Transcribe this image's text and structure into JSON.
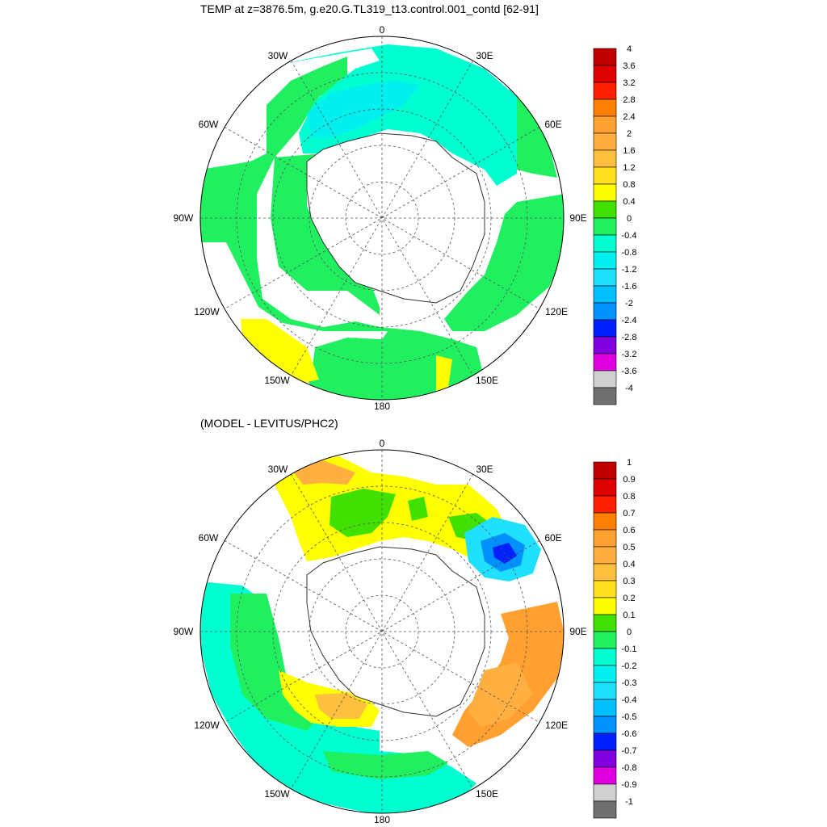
{
  "panels": [
    {
      "title": "TEMP at z=3876.5m, g.e20.G.TL319_t13.control.001_contd [62-91]",
      "lon_labels": [
        "0",
        "30E",
        "60E",
        "90E",
        "120E",
        "150E",
        "180",
        "150W",
        "120W",
        "90W",
        "60W",
        "30W"
      ],
      "colorbar": {
        "levels": [
          "4",
          "3.6",
          "3.2",
          "2.8",
          "2.4",
          "2",
          "1.6",
          "1.2",
          "0.8",
          "0.4",
          "0",
          "-0.4",
          "-0.8",
          "-1.2",
          "-1.6",
          "-2",
          "-2.4",
          "-2.8",
          "-3.2",
          "-3.6",
          "-4"
        ],
        "colors": [
          "#c00000",
          "#e00000",
          "#ff2000",
          "#ff8000",
          "#ffa030",
          "#ffb040",
          "#ffc040",
          "#ffe020",
          "#ffff00",
          "#40e000",
          "#20f060",
          "#00ffd0",
          "#00f0f0",
          "#20e0ff",
          "#00c0ff",
          "#0090ff",
          "#0020ff",
          "#8000e0",
          "#e000e0",
          "#d0d0d0",
          "#707070"
        ]
      },
      "fields": [
        {
          "color": "#20f060",
          "desc": "ocean west sector"
        },
        {
          "color": "#00ffd0",
          "desc": "ocean atlantic-indian"
        },
        {
          "color": "#00f0f0",
          "desc": "weddell basin"
        },
        {
          "color": "#ffff00",
          "desc": "pacific yellow patch"
        }
      ]
    },
    {
      "title": "(MODEL - LEVITUS/PHC2)",
      "lon_labels": [
        "0",
        "30E",
        "60E",
        "90E",
        "120E",
        "150E",
        "180",
        "150W",
        "120W",
        "90W",
        "60W",
        "30W"
      ],
      "colorbar": {
        "levels": [
          "1",
          "0.9",
          "0.8",
          "0.7",
          "0.6",
          "0.5",
          "0.4",
          "0.3",
          "0.2",
          "0.1",
          "0",
          "-0.1",
          "-0.2",
          "-0.3",
          "-0.4",
          "-0.5",
          "-0.6",
          "-0.7",
          "-0.8",
          "-0.9",
          "-1"
        ],
        "colors": [
          "#c00000",
          "#e00000",
          "#ff2000",
          "#ff8000",
          "#ffa030",
          "#ffb040",
          "#ffc040",
          "#ffe020",
          "#ffff00",
          "#40e000",
          "#20f060",
          "#00ffd0",
          "#00f0f0",
          "#20e0ff",
          "#00c0ff",
          "#0090ff",
          "#0020ff",
          "#8000e0",
          "#e000e0",
          "#d0d0d0",
          "#707070"
        ]
      }
    }
  ]
}
